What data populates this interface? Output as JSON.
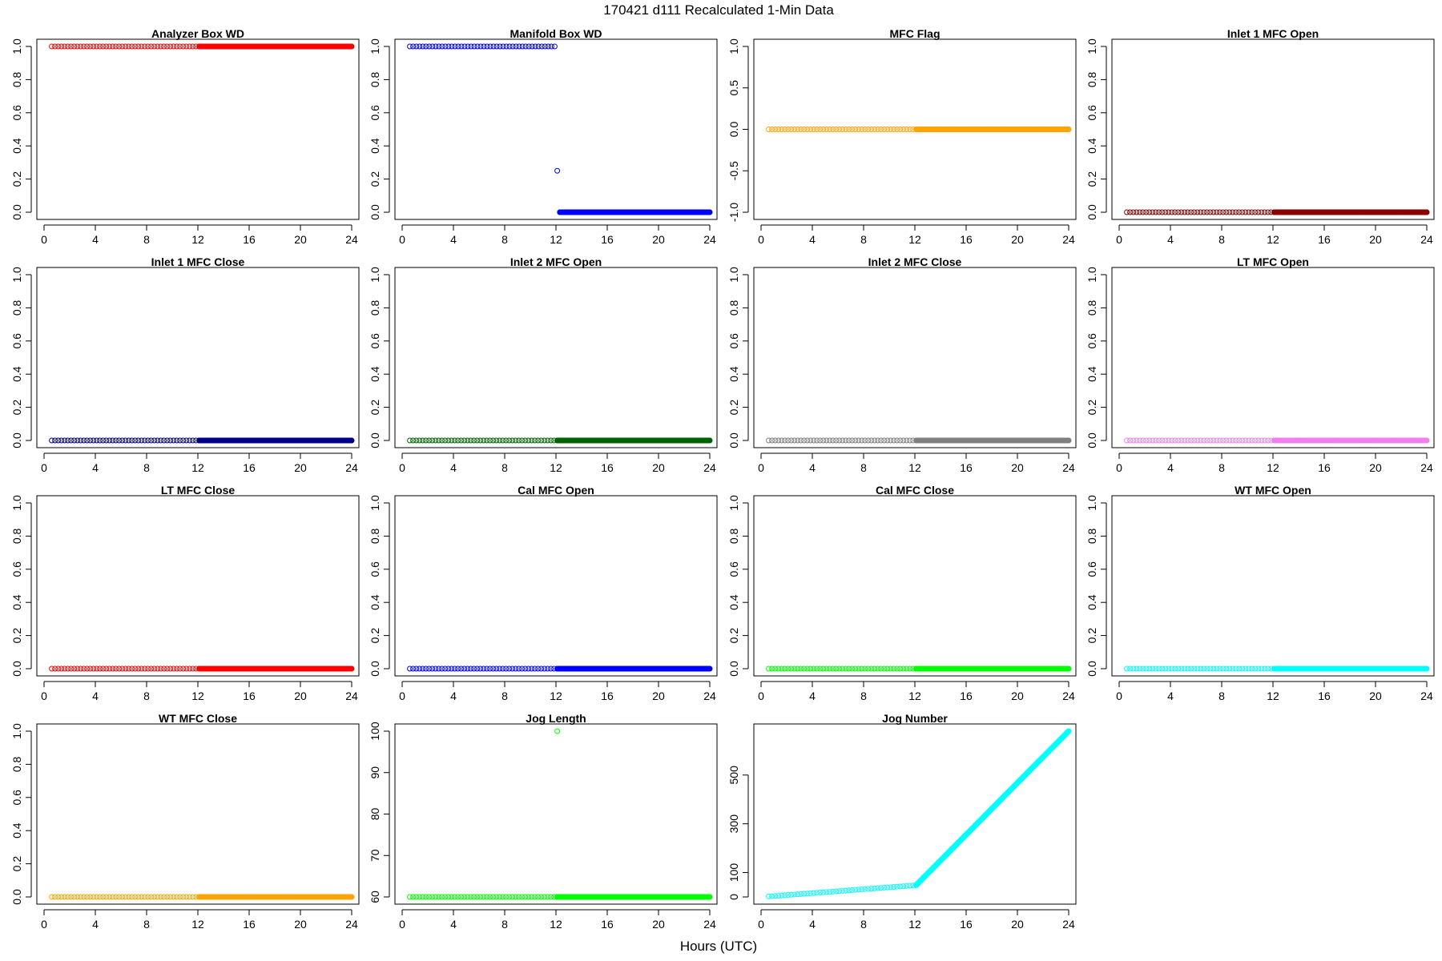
{
  "figure": {
    "title": "170421   d111   Recalculated 1-Min Data",
    "xlabel": "Hours (UTC)"
  },
  "chart_data": [
    {
      "type": "scatter",
      "title": "Analyzer Box WD",
      "color": "#ff0000",
      "xlim": [
        0,
        24
      ],
      "xticks": [
        "0",
        "4",
        "8",
        "12",
        "16",
        "20",
        "24"
      ],
      "ylim": [
        0,
        1
      ],
      "yticks": [
        "0.0",
        "0.2",
        "0.4",
        "0.6",
        "0.8",
        "1.0"
      ],
      "segments": [
        {
          "x_start": 0.6,
          "x_end": 12.1,
          "y_start": 1.0,
          "y_end": 1.0,
          "step_hours": 0.25
        },
        {
          "x_start": 12.1,
          "x_end": 24.0,
          "y_start": 1.0,
          "y_end": 1.0,
          "step_hours": 0.0167
        }
      ],
      "outliers": []
    },
    {
      "type": "scatter",
      "title": "Manifold Box WD",
      "color": "#0000ff",
      "xlim": [
        0,
        24
      ],
      "xticks": [
        "0",
        "4",
        "8",
        "12",
        "16",
        "20",
        "24"
      ],
      "ylim": [
        0,
        1
      ],
      "yticks": [
        "0.0",
        "0.2",
        "0.4",
        "0.6",
        "0.8",
        "1.0"
      ],
      "segments": [
        {
          "x_start": 0.6,
          "x_end": 11.9,
          "y_start": 1.0,
          "y_end": 1.0,
          "step_hours": 0.25
        },
        {
          "x_start": 12.3,
          "x_end": 24.0,
          "y_start": 0.0,
          "y_end": 0.0,
          "step_hours": 0.0167
        }
      ],
      "outliers": [
        {
          "x": 12.1,
          "y": 0.25
        }
      ]
    },
    {
      "type": "scatter",
      "title": "MFC Flag",
      "color": "#ffa500",
      "xlim": [
        0,
        24
      ],
      "xticks": [
        "0",
        "4",
        "8",
        "12",
        "16",
        "20",
        "24"
      ],
      "ylim": [
        -1,
        1
      ],
      "yticks": [
        "-1.0",
        "-0.5",
        "0.0",
        "0.5",
        "1.0"
      ],
      "segments": [
        {
          "x_start": 0.6,
          "x_end": 12.1,
          "y_start": 0.0,
          "y_end": 0.0,
          "step_hours": 0.25
        },
        {
          "x_start": 12.1,
          "x_end": 24.0,
          "y_start": 0.0,
          "y_end": 0.0,
          "step_hours": 0.0167
        }
      ],
      "outliers": []
    },
    {
      "type": "scatter",
      "title": "Inlet 1 MFC Open",
      "color": "#8b0000",
      "xlim": [
        0,
        24
      ],
      "xticks": [
        "0",
        "4",
        "8",
        "12",
        "16",
        "20",
        "24"
      ],
      "ylim": [
        0,
        1
      ],
      "yticks": [
        "0.0",
        "0.2",
        "0.4",
        "0.6",
        "0.8",
        "1.0"
      ],
      "segments": [
        {
          "x_start": 0.6,
          "x_end": 12.1,
          "y_start": 0.0,
          "y_end": 0.0,
          "step_hours": 0.25
        },
        {
          "x_start": 12.1,
          "x_end": 24.0,
          "y_start": 0.0,
          "y_end": 0.0,
          "step_hours": 0.0167
        }
      ],
      "outliers": []
    },
    {
      "type": "scatter",
      "title": "Inlet 1 MFC Close",
      "color": "#00008b",
      "xlim": [
        0,
        24
      ],
      "xticks": [
        "0",
        "4",
        "8",
        "12",
        "16",
        "20",
        "24"
      ],
      "ylim": [
        0,
        1
      ],
      "yticks": [
        "0.0",
        "0.2",
        "0.4",
        "0.6",
        "0.8",
        "1.0"
      ],
      "segments": [
        {
          "x_start": 0.6,
          "x_end": 12.1,
          "y_start": 0.0,
          "y_end": 0.0,
          "step_hours": 0.25
        },
        {
          "x_start": 12.1,
          "x_end": 24.0,
          "y_start": 0.0,
          "y_end": 0.0,
          "step_hours": 0.0167
        }
      ],
      "outliers": []
    },
    {
      "type": "scatter",
      "title": "Inlet 2 MFC Open",
      "color": "#006400",
      "xlim": [
        0,
        24
      ],
      "xticks": [
        "0",
        "4",
        "8",
        "12",
        "16",
        "20",
        "24"
      ],
      "ylim": [
        0,
        1
      ],
      "yticks": [
        "0.0",
        "0.2",
        "0.4",
        "0.6",
        "0.8",
        "1.0"
      ],
      "segments": [
        {
          "x_start": 0.6,
          "x_end": 12.1,
          "y_start": 0.0,
          "y_end": 0.0,
          "step_hours": 0.25
        },
        {
          "x_start": 12.1,
          "x_end": 24.0,
          "y_start": 0.0,
          "y_end": 0.0,
          "step_hours": 0.0167
        }
      ],
      "outliers": []
    },
    {
      "type": "scatter",
      "title": "Inlet 2 MFC Close",
      "color": "#808080",
      "xlim": [
        0,
        24
      ],
      "xticks": [
        "0",
        "4",
        "8",
        "12",
        "16",
        "20",
        "24"
      ],
      "ylim": [
        0,
        1
      ],
      "yticks": [
        "0.0",
        "0.2",
        "0.4",
        "0.6",
        "0.8",
        "1.0"
      ],
      "segments": [
        {
          "x_start": 0.6,
          "x_end": 12.1,
          "y_start": 0.0,
          "y_end": 0.0,
          "step_hours": 0.25
        },
        {
          "x_start": 12.1,
          "x_end": 24.0,
          "y_start": 0.0,
          "y_end": 0.0,
          "step_hours": 0.0167
        }
      ],
      "outliers": []
    },
    {
      "type": "scatter",
      "title": "LT MFC Open",
      "color": "#ee82ee",
      "xlim": [
        0,
        24
      ],
      "xticks": [
        "0",
        "4",
        "8",
        "12",
        "16",
        "20",
        "24"
      ],
      "ylim": [
        0,
        1
      ],
      "yticks": [
        "0.0",
        "0.2",
        "0.4",
        "0.6",
        "0.8",
        "1.0"
      ],
      "segments": [
        {
          "x_start": 0.6,
          "x_end": 12.1,
          "y_start": 0.0,
          "y_end": 0.0,
          "step_hours": 0.25
        },
        {
          "x_start": 12.1,
          "x_end": 24.0,
          "y_start": 0.0,
          "y_end": 0.0,
          "step_hours": 0.0167
        }
      ],
      "outliers": []
    },
    {
      "type": "scatter",
      "title": "LT MFC Close",
      "color": "#ff0000",
      "xlim": [
        0,
        24
      ],
      "xticks": [
        "0",
        "4",
        "8",
        "12",
        "16",
        "20",
        "24"
      ],
      "ylim": [
        0,
        1
      ],
      "yticks": [
        "0.0",
        "0.2",
        "0.4",
        "0.6",
        "0.8",
        "1.0"
      ],
      "segments": [
        {
          "x_start": 0.6,
          "x_end": 12.1,
          "y_start": 0.0,
          "y_end": 0.0,
          "step_hours": 0.25
        },
        {
          "x_start": 12.1,
          "x_end": 24.0,
          "y_start": 0.0,
          "y_end": 0.0,
          "step_hours": 0.0167
        }
      ],
      "outliers": []
    },
    {
      "type": "scatter",
      "title": "Cal MFC Open",
      "color": "#0000ff",
      "xlim": [
        0,
        24
      ],
      "xticks": [
        "0",
        "4",
        "8",
        "12",
        "16",
        "20",
        "24"
      ],
      "ylim": [
        0,
        1
      ],
      "yticks": [
        "0.0",
        "0.2",
        "0.4",
        "0.6",
        "0.8",
        "1.0"
      ],
      "segments": [
        {
          "x_start": 0.6,
          "x_end": 12.1,
          "y_start": 0.0,
          "y_end": 0.0,
          "step_hours": 0.25
        },
        {
          "x_start": 12.1,
          "x_end": 24.0,
          "y_start": 0.0,
          "y_end": 0.0,
          "step_hours": 0.0167
        }
      ],
      "outliers": []
    },
    {
      "type": "scatter",
      "title": "Cal MFC Close",
      "color": "#00ff00",
      "xlim": [
        0,
        24
      ],
      "xticks": [
        "0",
        "4",
        "8",
        "12",
        "16",
        "20",
        "24"
      ],
      "ylim": [
        0,
        1
      ],
      "yticks": [
        "0.0",
        "0.2",
        "0.4",
        "0.6",
        "0.8",
        "1.0"
      ],
      "segments": [
        {
          "x_start": 0.6,
          "x_end": 12.1,
          "y_start": 0.0,
          "y_end": 0.0,
          "step_hours": 0.25
        },
        {
          "x_start": 12.1,
          "x_end": 24.0,
          "y_start": 0.0,
          "y_end": 0.0,
          "step_hours": 0.0167
        }
      ],
      "outliers": []
    },
    {
      "type": "scatter",
      "title": "WT MFC Open",
      "color": "#00ffff",
      "xlim": [
        0,
        24
      ],
      "xticks": [
        "0",
        "4",
        "8",
        "12",
        "16",
        "20",
        "24"
      ],
      "ylim": [
        0,
        1
      ],
      "yticks": [
        "0.0",
        "0.2",
        "0.4",
        "0.6",
        "0.8",
        "1.0"
      ],
      "segments": [
        {
          "x_start": 0.6,
          "x_end": 12.1,
          "y_start": 0.0,
          "y_end": 0.0,
          "step_hours": 0.25
        },
        {
          "x_start": 12.1,
          "x_end": 24.0,
          "y_start": 0.0,
          "y_end": 0.0,
          "step_hours": 0.0167
        }
      ],
      "outliers": []
    },
    {
      "type": "scatter",
      "title": "WT MFC Close",
      "color": "#ffa500",
      "xlim": [
        0,
        24
      ],
      "xticks": [
        "0",
        "4",
        "8",
        "12",
        "16",
        "20",
        "24"
      ],
      "ylim": [
        0,
        1
      ],
      "yticks": [
        "0.0",
        "0.2",
        "0.4",
        "0.6",
        "0.8",
        "1.0"
      ],
      "segments": [
        {
          "x_start": 0.6,
          "x_end": 12.1,
          "y_start": 0.0,
          "y_end": 0.0,
          "step_hours": 0.25
        },
        {
          "x_start": 12.1,
          "x_end": 24.0,
          "y_start": 0.0,
          "y_end": 0.0,
          "step_hours": 0.0167
        }
      ],
      "outliers": []
    },
    {
      "type": "scatter",
      "title": "Jog Length",
      "color": "#00ff00",
      "xlim": [
        0,
        24
      ],
      "xticks": [
        "0",
        "4",
        "8",
        "12",
        "16",
        "20",
        "24"
      ],
      "ylim": [
        60,
        100
      ],
      "yticks": [
        "60",
        "70",
        "80",
        "90",
        "100"
      ],
      "segments": [
        {
          "x_start": 0.6,
          "x_end": 12.1,
          "y_start": 60,
          "y_end": 60,
          "step_hours": 0.25
        },
        {
          "x_start": 12.1,
          "x_end": 24.0,
          "y_start": 60,
          "y_end": 60,
          "step_hours": 0.0167
        }
      ],
      "outliers": [
        {
          "x": 12.1,
          "y": 100
        }
      ]
    },
    {
      "type": "scatter",
      "title": "Jog Number",
      "color": "#00ffff",
      "xlim": [
        0,
        24
      ],
      "xticks": [
        "0",
        "4",
        "8",
        "12",
        "16",
        "20",
        "24"
      ],
      "ylim": [
        0,
        680
      ],
      "yticks": [
        "0",
        "100",
        "300",
        "500"
      ],
      "segments": [
        {
          "x_start": 0.6,
          "x_end": 12.1,
          "y_start": 2,
          "y_end": 48,
          "step_hours": 0.25
        },
        {
          "x_start": 12.1,
          "x_end": 24.0,
          "y_start": 48,
          "y_end": 680,
          "step_hours": 0.0167
        }
      ],
      "outliers": []
    }
  ]
}
